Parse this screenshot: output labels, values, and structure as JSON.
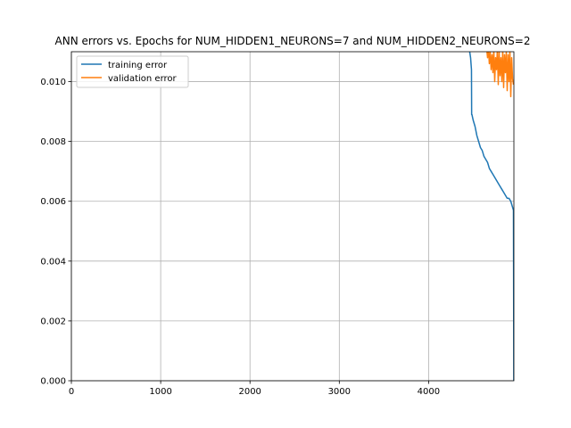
{
  "chart_data": {
    "type": "line",
    "title": "ANN errors vs. Epochs for NUM_HIDDEN1_NEURONS=7 and NUM_HIDDEN2_NEURONS=2",
    "xlabel": "",
    "ylabel": "",
    "xlim": [
      0,
      4955
    ],
    "ylim": [
      0.0,
      0.011
    ],
    "xticks": [
      0,
      1000,
      2000,
      3000,
      4000
    ],
    "xtick_labels": [
      "0",
      "1000",
      "2000",
      "3000",
      "4000"
    ],
    "yticks": [
      0.0,
      0.002,
      0.004,
      0.006,
      0.008,
      0.01
    ],
    "ytick_labels": [
      "0.000",
      "0.002",
      "0.004",
      "0.006",
      "0.008",
      "0.010"
    ],
    "grid": true,
    "legend_position": "upper-left",
    "series": [
      {
        "name": "training error",
        "color": "#1f77b4",
        "x": [
          4440,
          4460,
          4470,
          4475,
          4480,
          4482,
          4485,
          4500,
          4520,
          4540,
          4560,
          4580,
          4600,
          4620,
          4640,
          4660,
          4680,
          4700,
          4720,
          4740,
          4760,
          4780,
          4800,
          4820,
          4840,
          4860,
          4880,
          4900,
          4920,
          4940,
          4950,
          4952,
          4954
        ],
        "y": [
          0.0115,
          0.011,
          0.0108,
          0.0106,
          0.0104,
          0.0089,
          0.0089,
          0.0087,
          0.0085,
          0.0082,
          0.008,
          0.0078,
          0.0077,
          0.0075,
          0.0074,
          0.0073,
          0.0071,
          0.007,
          0.0069,
          0.0068,
          0.0067,
          0.0066,
          0.0065,
          0.0064,
          0.0063,
          0.0062,
          0.0061,
          0.0061,
          0.006,
          0.0058,
          0.0057,
          0.003,
          0.0
        ]
      },
      {
        "name": "validation error",
        "color": "#ff7f0e",
        "x": [
          4650,
          4660,
          4670,
          4680,
          4690,
          4700,
          4710,
          4720,
          4730,
          4740,
          4750,
          4760,
          4770,
          4780,
          4790,
          4800,
          4810,
          4820,
          4830,
          4840,
          4850,
          4860,
          4870,
          4880,
          4890,
          4900,
          4910,
          4920,
          4930,
          4940,
          4950
        ],
        "y": [
          0.0111,
          0.0108,
          0.0111,
          0.0106,
          0.011,
          0.0104,
          0.0109,
          0.0103,
          0.0111,
          0.01,
          0.0108,
          0.0104,
          0.0111,
          0.0099,
          0.011,
          0.0102,
          0.0108,
          0.01,
          0.0111,
          0.0098,
          0.0109,
          0.0103,
          0.011,
          0.0097,
          0.0109,
          0.01,
          0.0111,
          0.0095,
          0.0108,
          0.0101,
          0.0099
        ]
      }
    ]
  }
}
